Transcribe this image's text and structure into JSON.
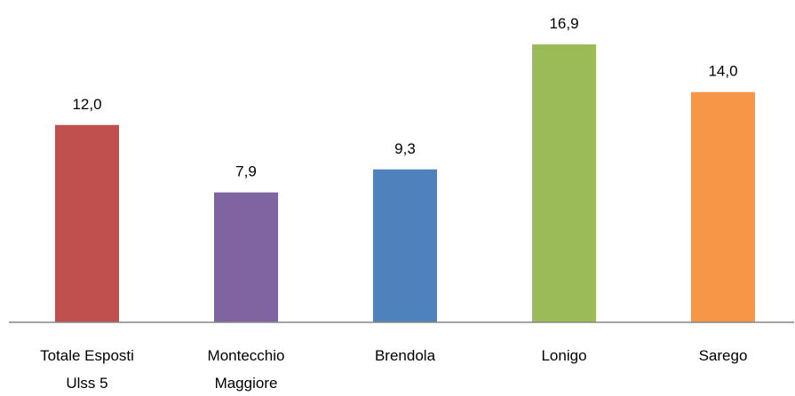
{
  "chart_data": {
    "type": "bar",
    "title": "",
    "xlabel": "",
    "ylabel": "",
    "ylim": [
      0,
      16.9
    ],
    "grid": false,
    "categories": [
      [
        "Totale Esposti",
        "Ulss 5"
      ],
      [
        "Montecchio",
        "Maggiore"
      ],
      [
        "Brendola"
      ],
      [
        "Lonigo"
      ],
      [
        "Sarego"
      ]
    ],
    "values": [
      12.0,
      7.9,
      9.3,
      16.9,
      14.0
    ],
    "value_labels": [
      "12,0",
      "7,9",
      "9,3",
      "16,9",
      "14,0"
    ],
    "colors": [
      "#C0504D",
      "#8064A2",
      "#4F81BD",
      "#9BBB59",
      "#F79646"
    ],
    "axis_color": "#868686"
  }
}
